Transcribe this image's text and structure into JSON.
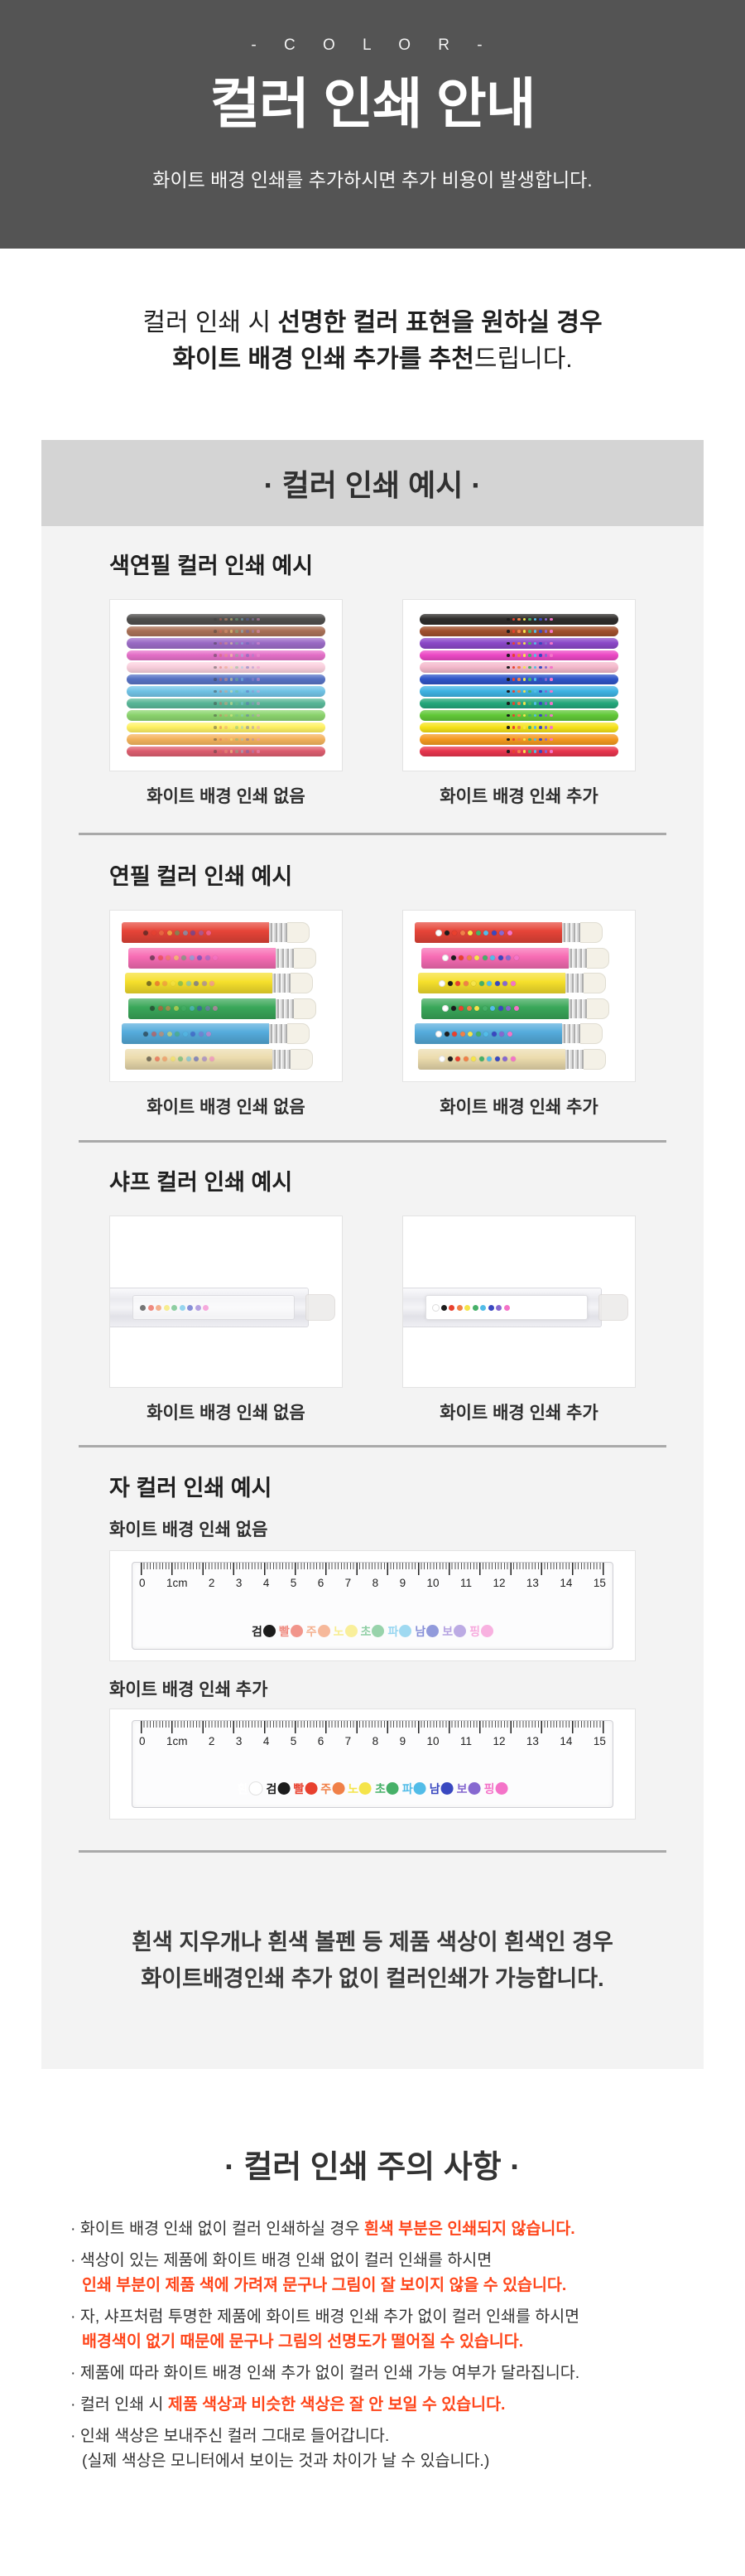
{
  "colors": {
    "accent_red": "#ff451a",
    "header_bg": "#545454",
    "band_bg": "#d4d4d4",
    "panel_bg": "#f3f3f3",
    "divider": "#a9a9a9"
  },
  "header": {
    "eyebrow": "-   C O L O R   -",
    "title": "컬러 인쇄 안내",
    "subtitle": "화이트 배경 인쇄를 추가하시면 추가 비용이 발생합니다."
  },
  "intro": {
    "line1": [
      {
        "t": "컬러 인쇄 시 ",
        "b": false
      },
      {
        "t": "선명한 컬러 표현을 원하실 경우",
        "b": true
      }
    ],
    "line2": [
      {
        "t": "화이트 배경 인쇄 추가를 추천",
        "b": true
      },
      {
        "t": "드립니다.",
        "b": false
      }
    ]
  },
  "example": {
    "box_title": "· 컬러 인쇄 예시 ·",
    "captions": {
      "without": "화이트 배경 인쇄 없음",
      "with": "화이트 배경 인쇄 추가"
    },
    "sections": [
      {
        "heading": "색연필 컬러 인쇄 예시"
      },
      {
        "heading": "연필 컬러 인쇄 예시"
      },
      {
        "heading": "샤프 컬러 인쇄 예시"
      },
      {
        "heading": "자 컬러 인쇄 예시"
      }
    ],
    "crayon_colors": [
      "#2f2d2b",
      "#a0502c",
      "#8b48c8",
      "#ec49c5",
      "#f4b9cc",
      "#2f55c8",
      "#3fb4e4",
      "#23a87c",
      "#62c838",
      "#f6e319",
      "#f59a1f",
      "#e8354e"
    ],
    "pencil_colors": [
      "#e64438",
      "#f76cb4",
      "#f6e02c",
      "#3aa85a",
      "#55acdc",
      "#ecdcae"
    ],
    "legend": {
      "white": {
        "label": "흰",
        "hex": "#ffffff"
      },
      "colors": [
        {
          "label": "검",
          "hex": "#1c1c1c"
        },
        {
          "label": "빨",
          "hex": "#e8402e"
        },
        {
          "label": "주",
          "hex": "#f08048"
        },
        {
          "label": "노",
          "hex": "#f5e44a"
        },
        {
          "label": "초",
          "hex": "#46b068"
        },
        {
          "label": "파",
          "hex": "#52bce8"
        },
        {
          "label": "남",
          "hex": "#3948c0"
        },
        {
          "label": "보",
          "hex": "#8668d0"
        },
        {
          "label": "핑",
          "hex": "#f473c8"
        }
      ]
    },
    "ruler_numbers": [
      "0",
      "1cm",
      "2",
      "3",
      "4",
      "5",
      "6",
      "7",
      "8",
      "9",
      "10",
      "11",
      "12",
      "13",
      "14",
      "15"
    ],
    "note": [
      "흰색 지우개나 흰색 볼펜 등 제품 색상이 흰색인 경우",
      "화이트배경인쇄 추가 없이 컬러인쇄가 가능합니다."
    ]
  },
  "caution": {
    "title": "· 컬러 인쇄 주의 사항 ·",
    "bullets": [
      {
        "lines": [
          [
            {
              "t": "· 화이트 배경 인쇄 없이 컬러 인쇄하실 경우 ",
              "red": false
            },
            {
              "t": "흰색 부분은 인쇄되지 않습니다.",
              "red": true
            }
          ]
        ]
      },
      {
        "lines": [
          [
            {
              "t": "· 색상이 있는 제품에 화이트 배경 인쇄 없이 컬러 인쇄를 하시면",
              "red": false
            }
          ],
          [
            {
              "t": "인쇄 부분이 제품 색에 가려져 문구나 그림이 잘 보이지 않을 수 있습니다.",
              "red": true
            }
          ]
        ]
      },
      {
        "lines": [
          [
            {
              "t": "· 자, 샤프처럼 투명한 제품에 화이트 배경 인쇄 추가 없이 컬러 인쇄를 하시면",
              "red": false
            }
          ],
          [
            {
              "t": "배경색이 없기 때문에 문구나 그림의 선명도가 떨어질 수 있습니다.",
              "red": true
            }
          ]
        ]
      },
      {
        "lines": [
          [
            {
              "t": "· 제품에 따라 화이트 배경 인쇄 추가 없이 컬러 인쇄 가능 여부가 달라집니다.",
              "red": false
            }
          ]
        ]
      },
      {
        "lines": [
          [
            {
              "t": "· 컬러 인쇄 시 ",
              "red": false
            },
            {
              "t": "제품 색상과 비슷한 색상은 잘 안 보일 수 있습니다.",
              "red": true
            }
          ]
        ]
      },
      {
        "lines": [
          [
            {
              "t": "· 인쇄 색상은 보내주신 컬러 그대로 들어갑니다.",
              "red": false
            }
          ],
          [
            {
              "t": "(실제 색상은 모니터에서 보이는 것과 차이가 날 수 있습니다.)",
              "red": false
            }
          ]
        ]
      }
    ]
  }
}
